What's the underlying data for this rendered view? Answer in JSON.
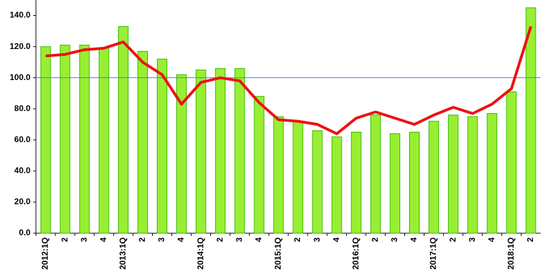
{
  "chart_data": {
    "type": "bar_line",
    "categories": [
      "2012:1Q",
      "2",
      "3",
      "4",
      "2013:1Q",
      "2",
      "3",
      "4",
      "2014:1Q",
      "2",
      "3",
      "4",
      "2015:1Q",
      "2",
      "3",
      "4",
      "2016:1Q",
      "2",
      "3",
      "4",
      "2017:1Q",
      "2",
      "3",
      "4",
      "2018:1Q",
      "2"
    ],
    "series": [
      {
        "type": "bar",
        "color": "#99ee33",
        "values": [
          120,
          121,
          121,
          119,
          133,
          117,
          112,
          102,
          105,
          106,
          106,
          88,
          75,
          72,
          66,
          62,
          65,
          76,
          64,
          65,
          72,
          76,
          75,
          77,
          91,
          145
        ]
      },
      {
        "type": "line",
        "color": "#ee1111",
        "values": [
          114,
          115,
          118,
          119,
          123,
          110,
          102,
          83,
          97,
          100,
          98,
          84,
          73,
          72,
          70,
          64,
          74,
          78,
          74,
          70,
          76,
          81,
          77,
          83,
          93,
          133
        ]
      }
    ],
    "reference_line": 100,
    "reference_color": "#4a7fc1",
    "ylim": [
      0,
      150
    ],
    "yticks": [
      {
        "value": 0,
        "label": "0.0"
      },
      {
        "value": 20,
        "label": "20.0"
      },
      {
        "value": 40,
        "label": "40.0"
      },
      {
        "value": 60,
        "label": "60.0"
      },
      {
        "value": 80,
        "label": "80.0"
      },
      {
        "value": 100,
        "label": "100.0"
      },
      {
        "value": 120,
        "label": "120.0"
      },
      {
        "value": 140,
        "label": "140.0"
      }
    ],
    "grid": false
  }
}
